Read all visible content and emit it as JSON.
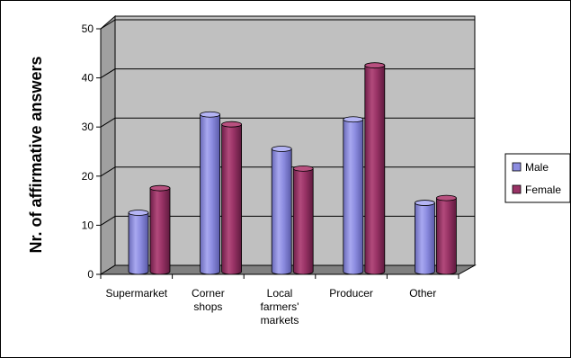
{
  "chart_data": {
    "type": "bar",
    "title": "",
    "xlabel": "",
    "ylabel": "Nr. of affirmative answers",
    "ylim": [
      0,
      50
    ],
    "yticks": [
      0,
      10,
      20,
      30,
      40,
      50
    ],
    "categories": [
      [
        "Supermarket"
      ],
      [
        "Corner",
        "shops"
      ],
      [
        "Local",
        "farmers'",
        "markets"
      ],
      [
        "Producer"
      ],
      [
        "Other"
      ]
    ],
    "series": [
      {
        "name": "Male",
        "values": [
          12,
          32,
          25,
          31,
          14
        ],
        "color": "#8c8ce0"
      },
      {
        "name": "Female",
        "values": [
          17,
          30,
          21,
          42,
          15
        ],
        "color": "#993366"
      }
    ],
    "grid": true,
    "legend_position": "right",
    "style": "3d-cylinder"
  }
}
